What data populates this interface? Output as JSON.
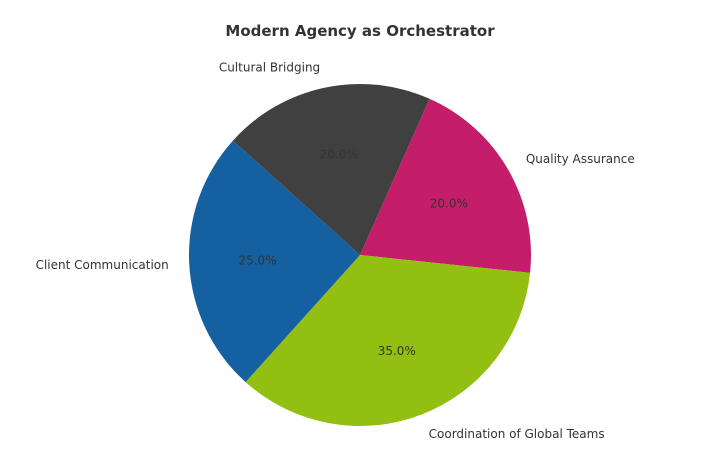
{
  "chart_data": {
    "type": "pie",
    "title": "Modern Agency as Orchestrator",
    "categories": [
      "Quality Assurance",
      "Coordination of Global Teams",
      "Client Communication",
      "Cultural Bridging"
    ],
    "values": [
      20.0,
      35.0,
      25.0,
      20.0
    ],
    "percent_labels": [
      "20.0%",
      "35.0%",
      "25.0%",
      "20.0%"
    ],
    "colors": [
      "#c41e6a",
      "#93bf12",
      "#1560a0",
      "#404040"
    ],
    "start_angle_deg": 66,
    "direction": "clockwise",
    "legend": "none"
  }
}
